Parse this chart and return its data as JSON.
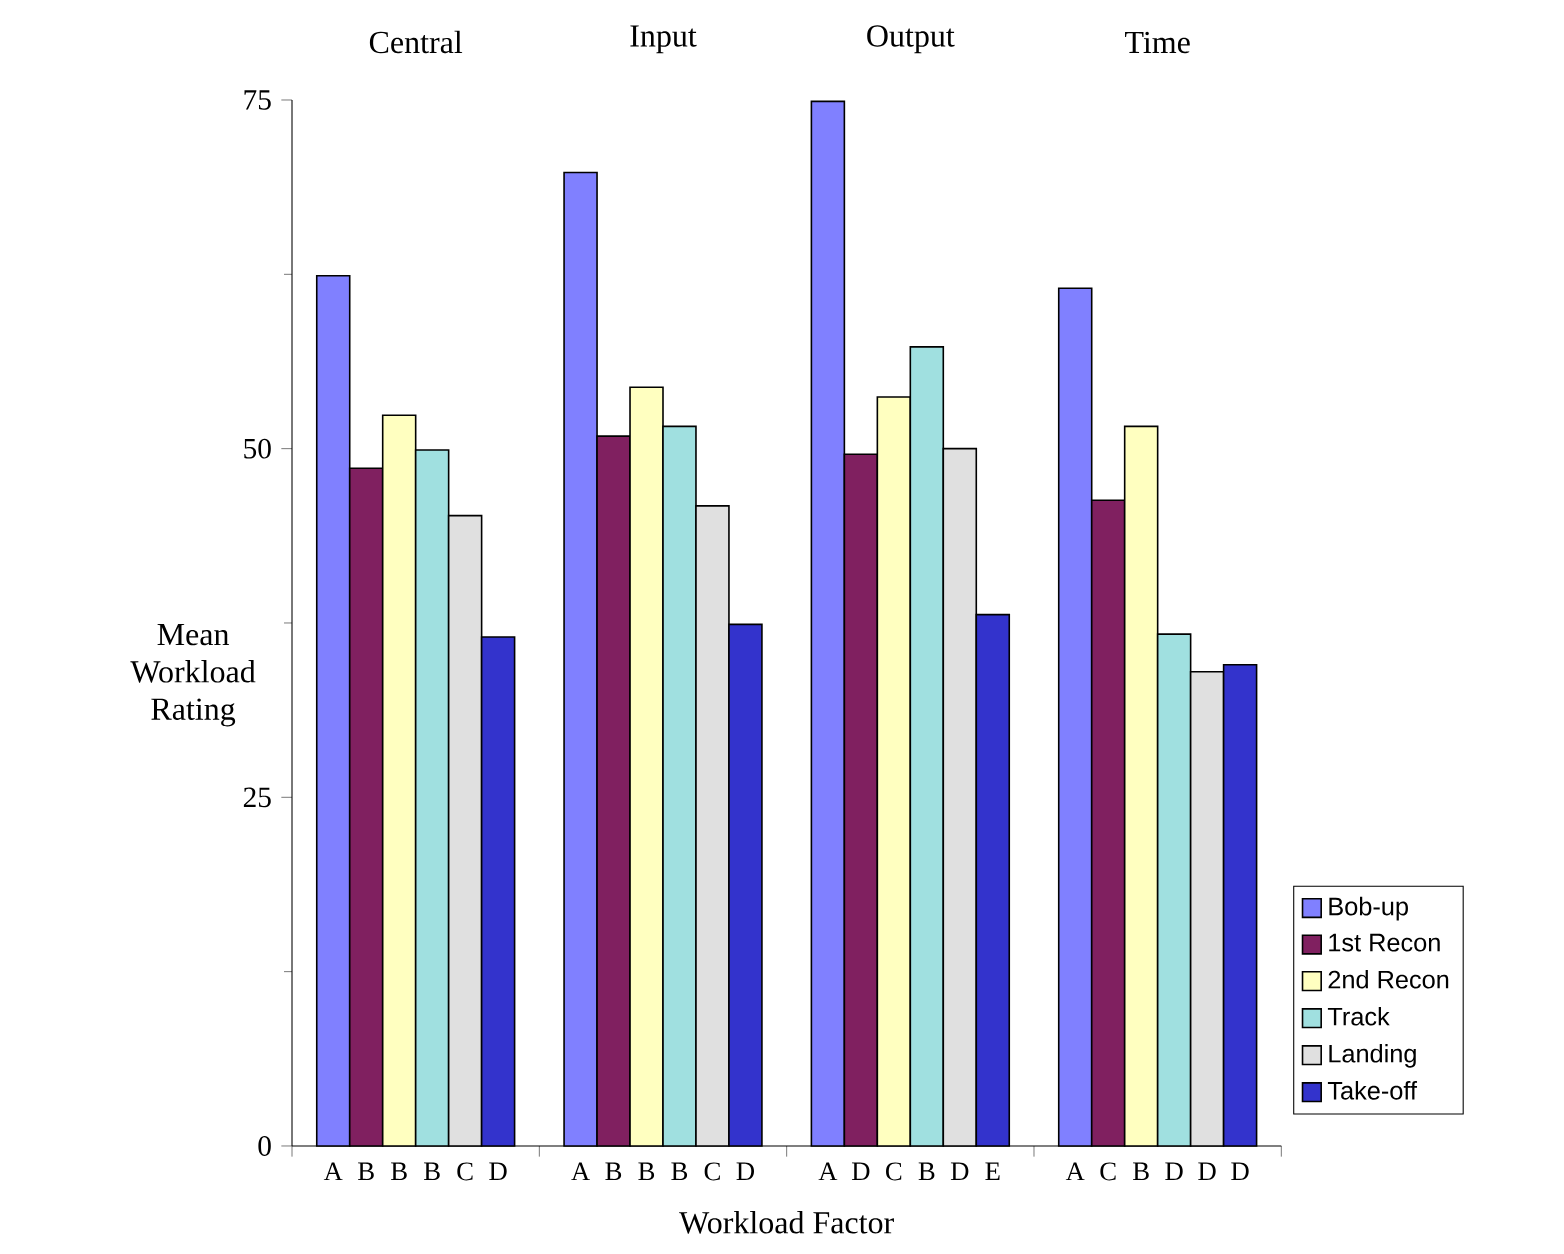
{
  "chart_data": {
    "type": "bar",
    "xlabel": "Workload Factor",
    "ylabel": "Mean Workload Rating",
    "categories": [
      "Central",
      "Input",
      "Output",
      "Time"
    ],
    "series": [
      {
        "name": "Bob-up",
        "color": "#8080ff",
        "values": [
          62.4,
          69.8,
          74.9,
          61.5
        ],
        "value_labels": [
          "A",
          "A",
          "A",
          "A"
        ]
      },
      {
        "name": "1st Recon",
        "color": "#802060",
        "values": [
          48.6,
          50.9,
          49.6,
          46.3
        ],
        "value_labels": [
          "B",
          "B",
          "D",
          "C"
        ]
      },
      {
        "name": "2nd Recon",
        "color": "#ffffc0",
        "values": [
          52.4,
          54.4,
          53.7,
          51.6
        ],
        "value_labels": [
          "B",
          "B",
          "C",
          "B"
        ]
      },
      {
        "name": "Track",
        "color": "#a0e0e0",
        "values": [
          49.9,
          51.6,
          57.3,
          36.7
        ],
        "value_labels": [
          "B",
          "B",
          "B",
          "D"
        ]
      },
      {
        "name": "Landing",
        "color": "#e0e0e0",
        "values": [
          45.2,
          45.9,
          50.0,
          34.0
        ],
        "value_labels": [
          "C",
          "C",
          "D",
          "D"
        ]
      },
      {
        "name": "Take-off",
        "color": "#3333cc",
        "values": [
          36.5,
          37.4,
          38.1,
          34.5
        ],
        "value_labels": [
          "D",
          "D",
          "E",
          "D"
        ]
      }
    ],
    "ylim": [
      0,
      75
    ],
    "yticks": [
      0,
      25,
      50,
      75
    ],
    "legend": "bottom right"
  }
}
